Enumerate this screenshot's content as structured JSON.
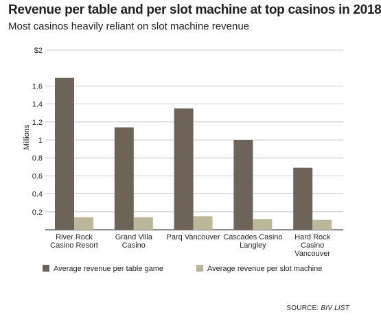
{
  "chart_data": {
    "type": "bar",
    "title": "Revenue per table and per slot machine at top casinos in 2018",
    "subtitle": "Most casinos heavily reliant on slot machine revenue",
    "ylabel": "Millions",
    "xlabel": "",
    "ylim": [
      0,
      2
    ],
    "yticks": [
      "0.2",
      "0.4",
      "0.6",
      "0.8",
      "1",
      "1.2",
      "1.4",
      "1.6",
      "$2"
    ],
    "ytick_values": [
      0.2,
      0.4,
      0.6,
      0.8,
      1.0,
      1.2,
      1.4,
      1.6,
      2.0
    ],
    "grid": true,
    "legend_position": "bottom",
    "categories": [
      [
        "River Rock",
        "Casino Resort"
      ],
      [
        "Grand Villa",
        "Casino"
      ],
      [
        "Parq Vancouver"
      ],
      [
        "Cascades Casino",
        "Langley"
      ],
      [
        "Hard Rock",
        "Casino",
        "Vancouver"
      ]
    ],
    "series": [
      {
        "name": "Average revenue per table game",
        "color": "#6d6358",
        "values": [
          1.69,
          1.14,
          1.35,
          1.0,
          0.69
        ]
      },
      {
        "name": "Average revenue per slot machine",
        "color": "#bbb79a",
        "values": [
          0.14,
          0.14,
          0.15,
          0.12,
          0.11
        ]
      }
    ],
    "source_label": "SOURCE:",
    "source_text": "BIV LIST"
  }
}
